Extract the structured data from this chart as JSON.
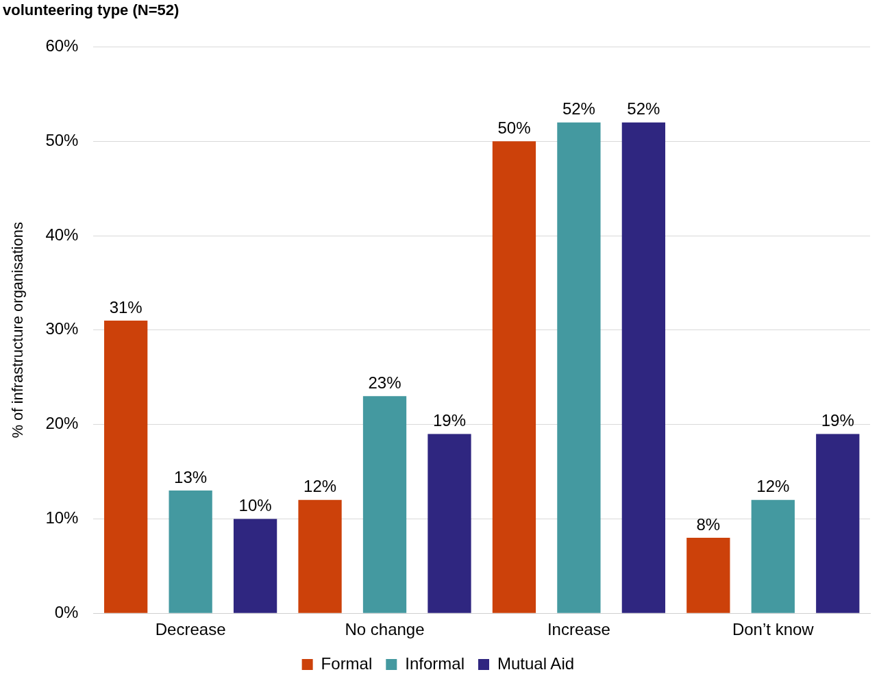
{
  "chart_data": {
    "type": "bar",
    "title": "volunteering type (N=52)",
    "ylabel": "% of infrastructure organisations",
    "categories": [
      "Decrease",
      "No change",
      "Increase",
      "Don’t know"
    ],
    "series": [
      {
        "name": "Formal",
        "color": "#cc410a",
        "values": [
          31,
          12,
          50,
          8
        ],
        "value_labels": [
          "31%",
          "12%",
          "50%",
          "8%"
        ]
      },
      {
        "name": "Informal",
        "color": "#4499a0",
        "values": [
          13,
          23,
          52,
          12
        ],
        "value_labels": [
          "13%",
          "23%",
          "52%",
          "12%"
        ]
      },
      {
        "name": "Mutual Aid",
        "color": "#2f2680",
        "values": [
          10,
          19,
          52,
          19
        ],
        "value_labels": [
          "10%",
          "19%",
          "52%",
          "19%"
        ]
      }
    ],
    "ylim": [
      0,
      60
    ],
    "yticks": [
      {
        "value": 0,
        "label": "0%"
      },
      {
        "value": 10,
        "label": "10%"
      },
      {
        "value": 20,
        "label": "20%"
      },
      {
        "value": 30,
        "label": "30%"
      },
      {
        "value": 40,
        "label": "40%"
      },
      {
        "value": 50,
        "label": "50%"
      },
      {
        "value": 60,
        "label": "60%"
      }
    ],
    "grid": "y",
    "legend": "bottom"
  }
}
